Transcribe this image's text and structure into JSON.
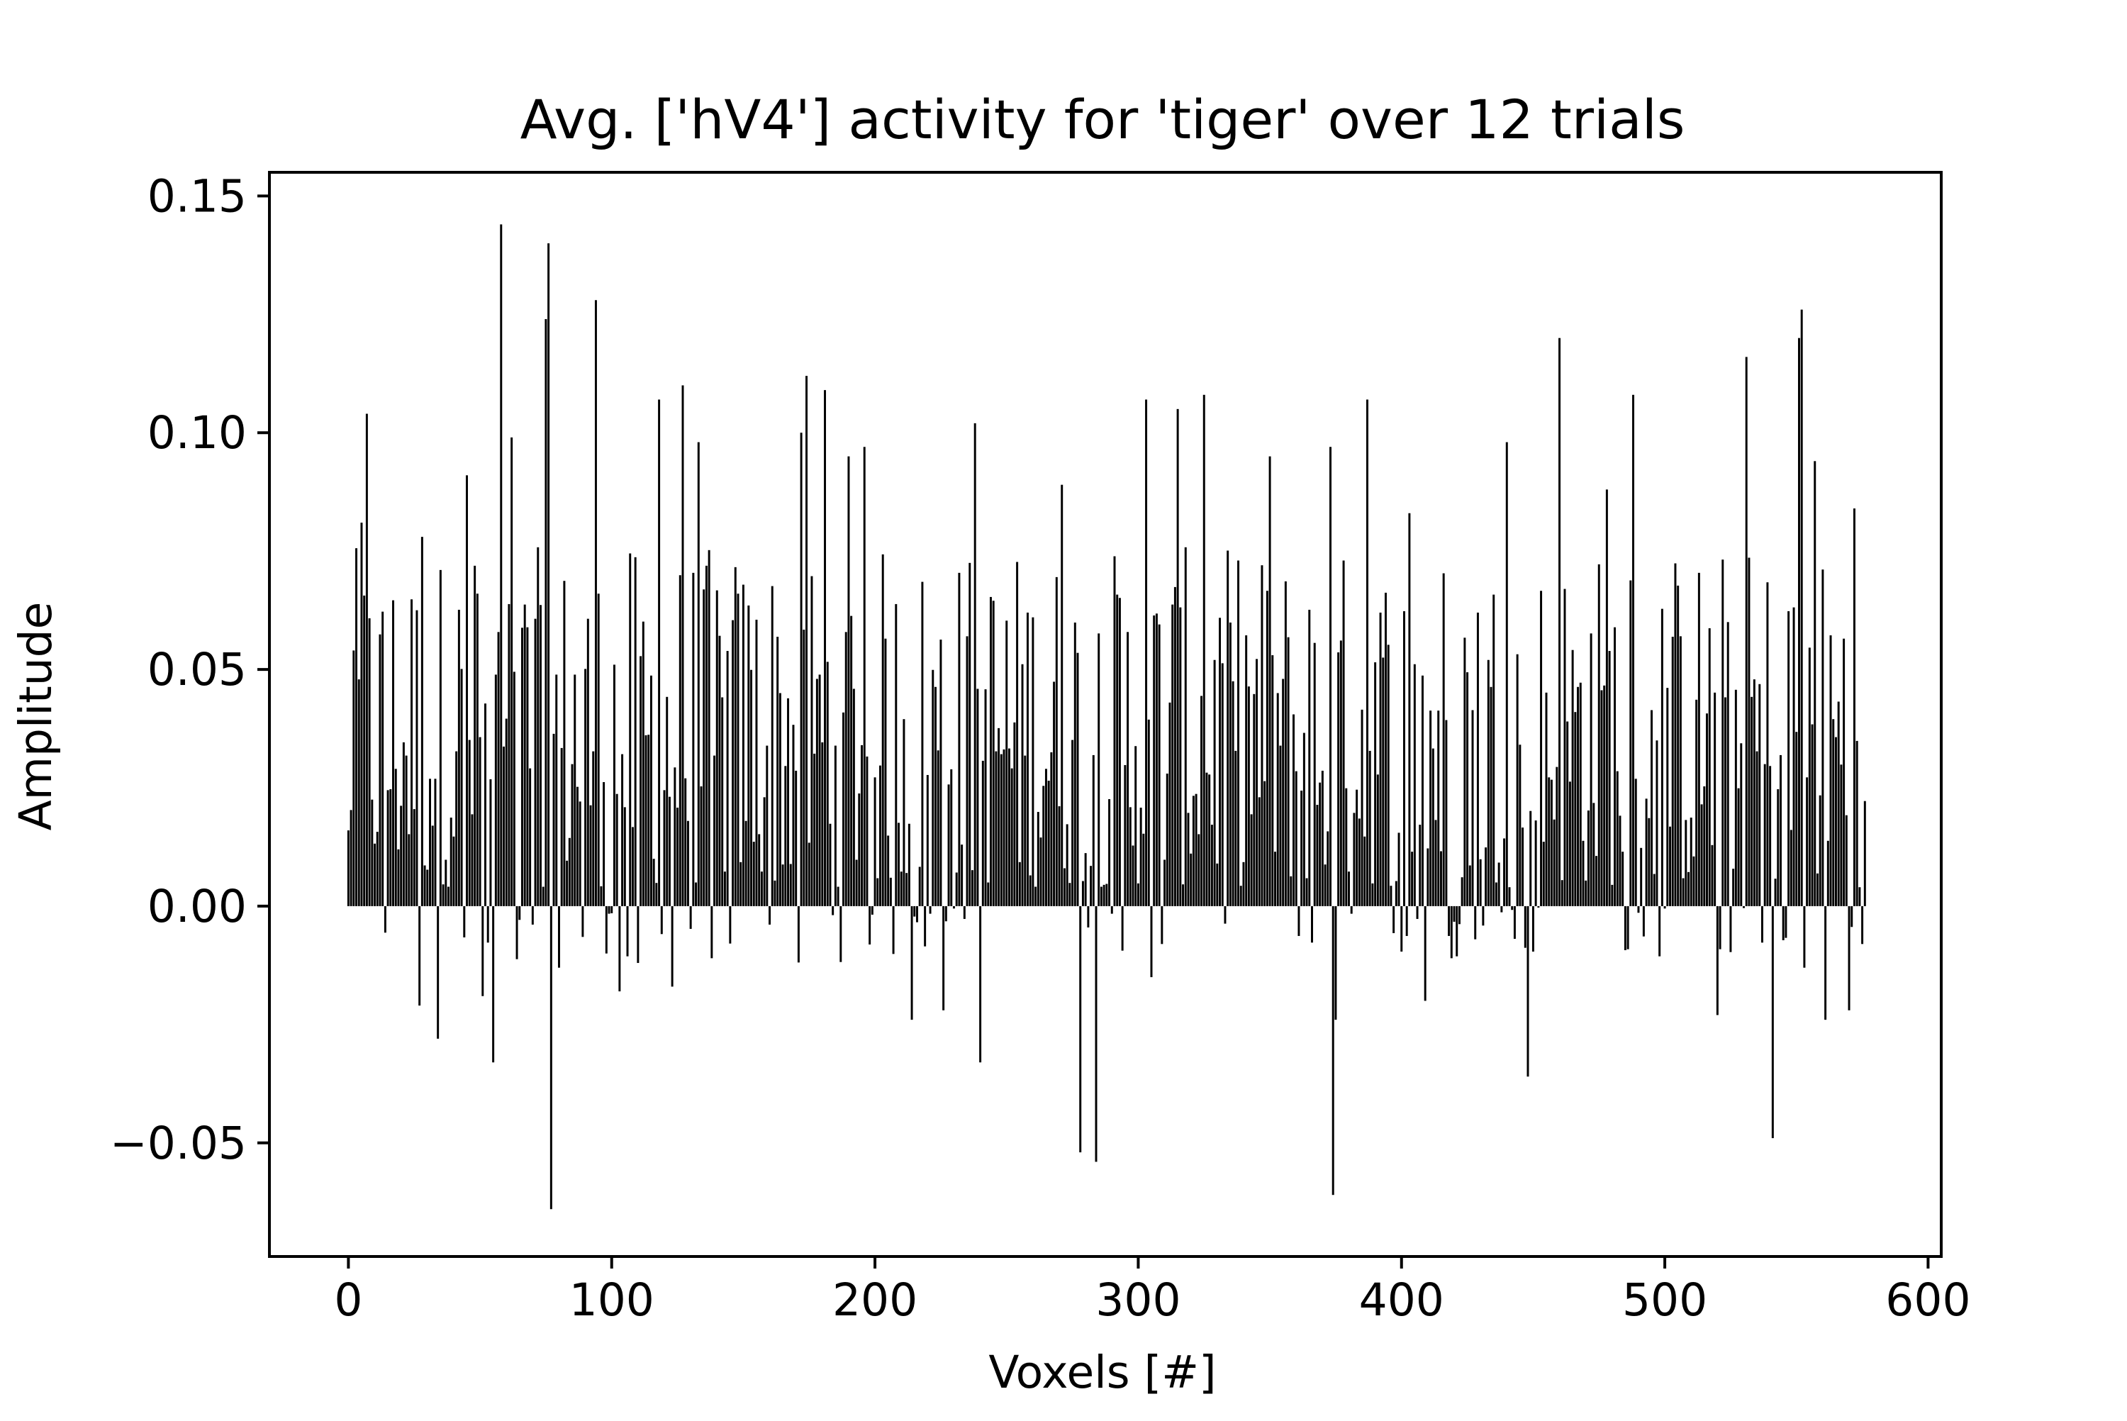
{
  "chart_data": {
    "type": "bar",
    "title": "Avg. ['hV4'] activity for 'tiger' over 12 trials",
    "xlabel": "Voxels [#]",
    "ylabel": "Amplitude",
    "xlim": [
      -30,
      605
    ],
    "ylim": [
      -0.074,
      0.155
    ],
    "xticks": [
      0,
      100,
      200,
      300,
      400,
      500,
      600
    ],
    "xtick_labels": [
      "0",
      "100",
      "200",
      "300",
      "400",
      "500",
      "600"
    ],
    "yticks": [
      -0.05,
      0.0,
      0.05,
      0.1,
      0.15
    ],
    "ytick_labels": [
      "−0.05",
      "0.00",
      "0.05",
      "0.10",
      "0.15"
    ],
    "grid": false,
    "legend": "none",
    "bar_color": "#000000",
    "n_voxels": 577,
    "notable_values": [
      {
        "x": 0,
        "y": 0.016
      },
      {
        "x": 2,
        "y": 0.054
      },
      {
        "x": 5,
        "y": 0.081
      },
      {
        "x": 7,
        "y": 0.104
      },
      {
        "x": 27,
        "y": -0.021
      },
      {
        "x": 28,
        "y": 0.078
      },
      {
        "x": 34,
        "y": -0.028
      },
      {
        "x": 45,
        "y": 0.091
      },
      {
        "x": 49,
        "y": 0.066
      },
      {
        "x": 51,
        "y": -0.019
      },
      {
        "x": 55,
        "y": -0.033
      },
      {
        "x": 58,
        "y": 0.144
      },
      {
        "x": 62,
        "y": 0.099
      },
      {
        "x": 75,
        "y": 0.124
      },
      {
        "x": 76,
        "y": 0.14
      },
      {
        "x": 77,
        "y": -0.064
      },
      {
        "x": 80,
        "y": -0.013
      },
      {
        "x": 94,
        "y": 0.128
      },
      {
        "x": 98,
        "y": -0.01
      },
      {
        "x": 103,
        "y": -0.018
      },
      {
        "x": 110,
        "y": -0.012
      },
      {
        "x": 118,
        "y": 0.107
      },
      {
        "x": 123,
        "y": -0.017
      },
      {
        "x": 127,
        "y": 0.11
      },
      {
        "x": 133,
        "y": 0.098
      },
      {
        "x": 138,
        "y": -0.011
      },
      {
        "x": 172,
        "y": 0.1
      },
      {
        "x": 174,
        "y": 0.112
      },
      {
        "x": 181,
        "y": 0.109
      },
      {
        "x": 190,
        "y": 0.095
      },
      {
        "x": 196,
        "y": 0.097
      },
      {
        "x": 214,
        "y": -0.024
      },
      {
        "x": 226,
        "y": -0.022
      },
      {
        "x": 238,
        "y": 0.102
      },
      {
        "x": 240,
        "y": -0.033
      },
      {
        "x": 271,
        "y": 0.089
      },
      {
        "x": 278,
        "y": -0.052
      },
      {
        "x": 284,
        "y": -0.054
      },
      {
        "x": 303,
        "y": 0.107
      },
      {
        "x": 305,
        "y": -0.015
      },
      {
        "x": 315,
        "y": 0.105
      },
      {
        "x": 325,
        "y": 0.108
      },
      {
        "x": 350,
        "y": 0.095
      },
      {
        "x": 373,
        "y": 0.097
      },
      {
        "x": 374,
        "y": -0.061
      },
      {
        "x": 375,
        "y": -0.024
      },
      {
        "x": 387,
        "y": 0.107
      },
      {
        "x": 403,
        "y": 0.083
      },
      {
        "x": 409,
        "y": -0.02
      },
      {
        "x": 440,
        "y": 0.098
      },
      {
        "x": 448,
        "y": -0.036
      },
      {
        "x": 460,
        "y": 0.12
      },
      {
        "x": 478,
        "y": 0.088
      },
      {
        "x": 488,
        "y": 0.108
      },
      {
        "x": 520,
        "y": -0.023
      },
      {
        "x": 524,
        "y": 0.06
      },
      {
        "x": 531,
        "y": 0.116
      },
      {
        "x": 541,
        "y": -0.049
      },
      {
        "x": 551,
        "y": 0.12
      },
      {
        "x": 552,
        "y": 0.126
      },
      {
        "x": 553,
        "y": -0.013
      },
      {
        "x": 557,
        "y": 0.094
      },
      {
        "x": 561,
        "y": -0.024
      },
      {
        "x": 570,
        "y": -0.022
      },
      {
        "x": 572,
        "y": 0.084
      },
      {
        "x": 575,
        "y": -0.008
      }
    ]
  }
}
